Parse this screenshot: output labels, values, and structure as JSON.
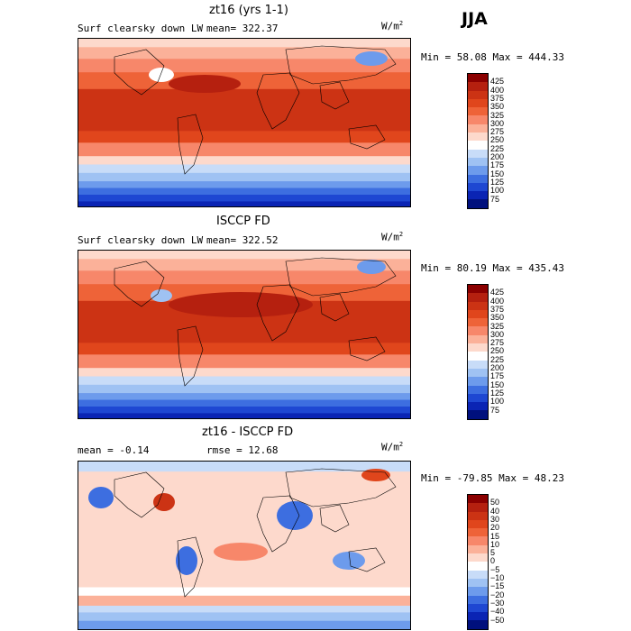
{
  "season": "JJA",
  "panels": [
    {
      "title": "zt16 (yrs 1-1)",
      "variable": "Surf clearsky down LW",
      "stat": "mean= 322.37",
      "units": "W/m",
      "units_sup": "2",
      "minmax": "Min =  58.08 Max = 444.33"
    },
    {
      "title": "ISCCP FD",
      "variable": "Surf clearsky down LW",
      "stat": "mean= 322.52",
      "units": "W/m",
      "units_sup": "2",
      "minmax": "Min =  80.19 Max = 435.43"
    },
    {
      "title": "zt16 - ISCCP FD",
      "stat_mean": "mean =  -0.14",
      "stat_rmse": "rmse =  12.68",
      "units": "W/m",
      "units_sup": "2",
      "minmax": "Min = -79.85 Max =  48.23"
    }
  ],
  "colorbars": [
    {
      "labels": [
        "425",
        "400",
        "375",
        "350",
        "325",
        "300",
        "275",
        "250",
        "225",
        "200",
        "175",
        "150",
        "125",
        "100",
        "75"
      ],
      "colors": [
        "#8b0000",
        "#b5200f",
        "#cc3314",
        "#e0461c",
        "#ee6338",
        "#f7876a",
        "#fbb199",
        "#fdd9cc",
        "#ffffff",
        "#c8dcf8",
        "#9fc2f3",
        "#6d9bec",
        "#3d6ee0",
        "#1e47d2",
        "#0a24b4",
        "#00107d"
      ]
    },
    {
      "labels": [
        "425",
        "400",
        "375",
        "350",
        "325",
        "300",
        "275",
        "250",
        "225",
        "200",
        "175",
        "150",
        "125",
        "100",
        "75"
      ],
      "colors": [
        "#8b0000",
        "#b5200f",
        "#cc3314",
        "#e0461c",
        "#ee6338",
        "#f7876a",
        "#fbb199",
        "#fdd9cc",
        "#ffffff",
        "#c8dcf8",
        "#9fc2f3",
        "#6d9bec",
        "#3d6ee0",
        "#1e47d2",
        "#0a24b4",
        "#00107d"
      ]
    },
    {
      "labels": [
        "50",
        "40",
        "30",
        "20",
        "15",
        "10",
        "5",
        "0",
        "−5",
        "−10",
        "−15",
        "−20",
        "−30",
        "−40",
        "−50"
      ],
      "colors": [
        "#8b0000",
        "#b5200f",
        "#cc3314",
        "#e0461c",
        "#ee6338",
        "#f7876a",
        "#fbb199",
        "#fdd9cc",
        "#ffffff",
        "#c8dcf8",
        "#9fc2f3",
        "#6d9bec",
        "#3d6ee0",
        "#1e47d2",
        "#0a24b4",
        "#00107d"
      ]
    }
  ]
}
